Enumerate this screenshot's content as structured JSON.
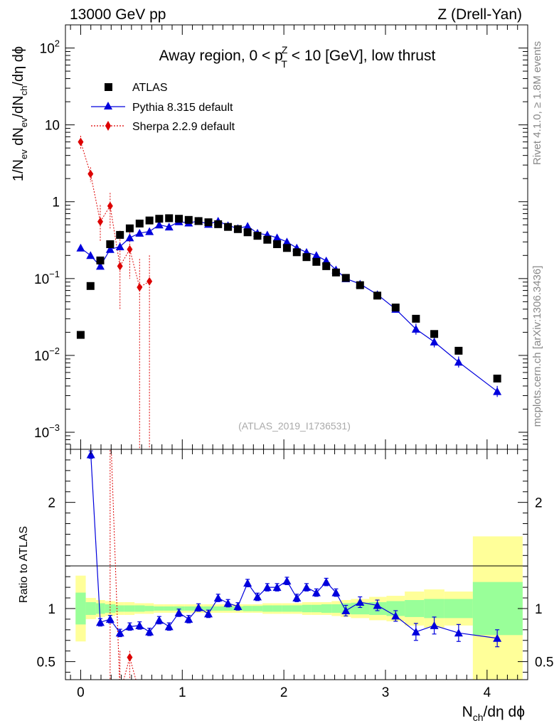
{
  "header": {
    "left": "13000 GeV pp",
    "right": "Z (Drell-Yan)",
    "side_rivet": "Rivet 4.1.0, ≥ 1.8M events",
    "side_mcplots": "mcplots.cern.ch [arXiv:1306.3436]"
  },
  "chart_data": {
    "type": "scatter",
    "title": "Away region, 0 < p_T^Z < 10 [GeV], low thrust",
    "title_parts": {
      "prefix": "Away region, 0 < p",
      "sup": "Z",
      "sub": "T",
      "suffix": " < 10 [GeV], low thrust"
    },
    "analysis_id": "(ATLAS_2019_I1736531)",
    "xlabel": "N_ch/dη dϕ",
    "xlabel_parts": {
      "main": "N",
      "sub": "ch",
      "rest": "/dη dϕ"
    },
    "ylabel": "1/N_ev dN_ev/dN_ch/dη dϕ",
    "ylabel_parts": {
      "a": "1/N",
      "a_sub": "ev",
      "b": " dN",
      "b_sub": "ev",
      "c": "/dN",
      "c_sub": "ch",
      "d": "/dη dϕ"
    },
    "ratio_ylabel": "Ratio to ATLAS",
    "xlim": [
      -0.15,
      4.4
    ],
    "ylim": [
      0.0006,
      200
    ],
    "ratio_ylim": [
      0.33,
      2.5
    ],
    "x_ticks": [
      "0",
      "1",
      "2",
      "3",
      "4"
    ],
    "y_ticks": [
      {
        "base": "10",
        "exp": "2"
      },
      {
        "base": "10",
        "exp": ""
      },
      {
        "base": "1",
        "exp": ""
      },
      {
        "base": "10",
        "exp": "−1"
      },
      {
        "base": "10",
        "exp": "−2"
      },
      {
        "base": "10",
        "exp": "−3"
      }
    ],
    "ratio_ticks": [
      "2",
      "1",
      "0.5"
    ],
    "legend": [
      {
        "label": "ATLAS",
        "color": "#000000",
        "marker": "square"
      },
      {
        "label": "Pythia 8.315 default",
        "color": "#0000dd",
        "marker": "triangle"
      },
      {
        "label": "Sherpa 2.2.9 default",
        "color": "#dd0000",
        "marker": "diamond"
      }
    ],
    "series": [
      {
        "name": "ATLAS",
        "x": [
          0.0,
          0.097,
          0.193,
          0.29,
          0.387,
          0.483,
          0.58,
          0.677,
          0.773,
          0.87,
          0.967,
          1.063,
          1.16,
          1.257,
          1.353,
          1.45,
          1.547,
          1.643,
          1.74,
          1.837,
          1.933,
          2.03,
          2.127,
          2.223,
          2.32,
          2.417,
          2.513,
          2.61,
          2.75,
          2.92,
          3.1,
          3.3,
          3.48,
          3.72,
          4.1
        ],
        "y": [
          0.0185,
          0.08,
          0.172,
          0.28,
          0.37,
          0.45,
          0.52,
          0.57,
          0.6,
          0.61,
          0.6,
          0.58,
          0.56,
          0.54,
          0.51,
          0.47,
          0.44,
          0.4,
          0.36,
          0.32,
          0.28,
          0.25,
          0.22,
          0.19,
          0.165,
          0.145,
          0.12,
          0.102,
          0.082,
          0.06,
          0.042,
          0.03,
          0.019,
          0.0115,
          0.005
        ]
      },
      {
        "name": "Pythia 8.315 default",
        "x": [
          0.0,
          0.097,
          0.193,
          0.29,
          0.387,
          0.483,
          0.58,
          0.677,
          0.773,
          0.87,
          0.967,
          1.063,
          1.16,
          1.257,
          1.353,
          1.45,
          1.547,
          1.643,
          1.74,
          1.837,
          1.933,
          2.03,
          2.127,
          2.223,
          2.32,
          2.417,
          2.513,
          2.61,
          2.75,
          2.92,
          3.1,
          3.3,
          3.48,
          3.72,
          4.1
        ],
        "y": [
          0.25,
          0.2,
          0.145,
          0.24,
          0.26,
          0.34,
          0.39,
          0.41,
          0.5,
          0.47,
          0.55,
          0.53,
          0.56,
          0.51,
          0.56,
          0.49,
          0.45,
          0.48,
          0.39,
          0.37,
          0.34,
          0.3,
          0.25,
          0.22,
          0.2,
          0.17,
          0.13,
          0.1,
          0.085,
          0.062,
          0.04,
          0.022,
          0.015,
          0.0082,
          0.0034
        ]
      },
      {
        "name": "Sherpa 2.2.9 default",
        "x": [
          0.0,
          0.097,
          0.193,
          0.29,
          0.387,
          0.483,
          0.58,
          0.677
        ],
        "y": [
          6.0,
          2.3,
          0.55,
          0.88,
          0.145,
          0.24,
          0.077,
          0.092
        ]
      }
    ],
    "ratio_series": [
      {
        "name": "Pythia 8.315 default",
        "x": [
          0.1,
          0.193,
          0.29,
          0.387,
          0.483,
          0.58,
          0.677,
          0.773,
          0.87,
          0.967,
          1.063,
          1.16,
          1.257,
          1.353,
          1.45,
          1.547,
          1.643,
          1.74,
          1.837,
          1.933,
          2.03,
          2.127,
          2.223,
          2.32,
          2.417,
          2.513,
          2.61,
          2.75,
          2.92,
          3.1,
          3.3,
          3.48,
          3.72,
          4.1
        ],
        "y": [
          2.45,
          0.87,
          0.9,
          0.77,
          0.83,
          0.84,
          0.78,
          0.89,
          0.83,
          0.96,
          0.9,
          1.01,
          0.95,
          1.1,
          1.05,
          1.02,
          1.24,
          1.11,
          1.2,
          1.2,
          1.26,
          1.1,
          1.2,
          1.15,
          1.25,
          1.15,
          0.98,
          1.06,
          1.03,
          0.93,
          0.78,
          0.84,
          0.77,
          0.72
        ]
      },
      {
        "name": "Sherpa 2.2.9 default",
        "x": [
          0.483
        ],
        "y": [
          0.54
        ]
      }
    ]
  }
}
